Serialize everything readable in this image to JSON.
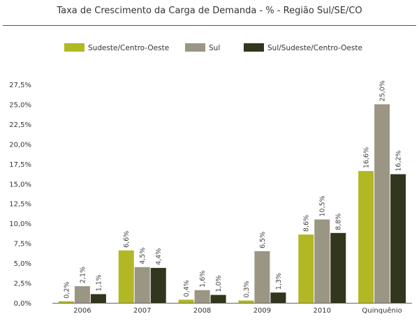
{
  "chart_data": {
    "type": "bar",
    "title": "Taxa de Crescimento da Carga de Demanda - % - Região Sul/SE/CO",
    "xlabel": "",
    "ylabel": "",
    "categories": [
      "2006",
      "2007",
      "2008",
      "2009",
      "2010",
      "Quinquênio"
    ],
    "ylim": [
      0,
      27.5
    ],
    "yticks": [
      "0,0%",
      "2,5%",
      "5,0%",
      "7,5%",
      "10,0%",
      "12,5%",
      "15,0%",
      "17,5%",
      "20,0%",
      "22,5%",
      "25,0%",
      "27,5%"
    ],
    "legend_position": "top",
    "grid": false,
    "series": [
      {
        "name": "Sudeste/Centro-Oeste",
        "color": "#b1b823",
        "values": [
          0.2,
          6.6,
          0.4,
          0.3,
          8.6,
          16.6
        ],
        "labels": [
          "0,2%",
          "6,6%",
          "0,4%",
          "0,3%",
          "8,6%",
          "16,6%"
        ]
      },
      {
        "name": "Sul",
        "color": "#9b9584",
        "values": [
          2.1,
          4.5,
          1.6,
          6.5,
          10.5,
          25.0
        ],
        "labels": [
          "2,1%",
          "4,5%",
          "1,6%",
          "6,5%",
          "10,5%",
          "25,0%"
        ]
      },
      {
        "name": "Sul/Sudeste/Centro-Oeste",
        "color": "#31361c",
        "values": [
          1.1,
          4.4,
          1.0,
          1.3,
          8.8,
          16.2
        ],
        "labels": [
          "1,1%",
          "4,4%",
          "1,0%",
          "1,3%",
          "8,8%",
          "16,2%"
        ]
      }
    ]
  }
}
